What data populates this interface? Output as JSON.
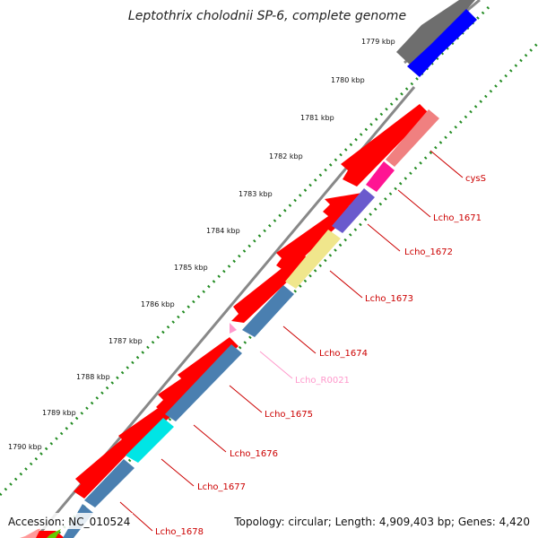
{
  "title": "Leptothrix cholodnii SP-6, complete genome",
  "footer": {
    "accession": "Accession: NC_010524",
    "summary": "Topology: circular; Length: 4,909,403 bp; Genes: 4,420"
  },
  "ticks": [
    "1779 kbp",
    "1780 kbp",
    "1781 kbp",
    "1782 kbp",
    "1783 kbp",
    "1784 kbp",
    "1785 kbp",
    "1786 kbp",
    "1787 kbp",
    "1788 kbp",
    "1789 kbp",
    "1790 kbp"
  ],
  "gene_labels": [
    {
      "text": "cysS",
      "color": "#cc0000"
    },
    {
      "text": "Lcho_1671",
      "color": "#cc0000"
    },
    {
      "text": "Lcho_1672",
      "color": "#cc0000"
    },
    {
      "text": "Lcho_1673",
      "color": "#cc0000"
    },
    {
      "text": "Lcho_1674",
      "color": "#cc0000"
    },
    {
      "text": "Lcho_R0021",
      "color": "#ff99cc"
    },
    {
      "text": "Lcho_1675",
      "color": "#cc0000"
    },
    {
      "text": "Lcho_1676",
      "color": "#cc0000"
    },
    {
      "text": "Lcho_1677",
      "color": "#cc0000"
    },
    {
      "text": "Lcho_1678",
      "color": "#cc0000"
    }
  ],
  "colors": {
    "gene_forward": "#ff0000",
    "backbone": "#888888",
    "tick_dots": "#228B22",
    "cog_blue": "#4a7fb0",
    "cysS": "#f08080",
    "lcho_1671": "#ff1493",
    "lcho_1672": "#6a5acd",
    "lcho_1673": "#f0e68c",
    "lcho_1677": "#00e5e5",
    "rrna": "#ff99cc",
    "top_gray": "#6e6e6e",
    "top_blue": "#0000ff"
  }
}
